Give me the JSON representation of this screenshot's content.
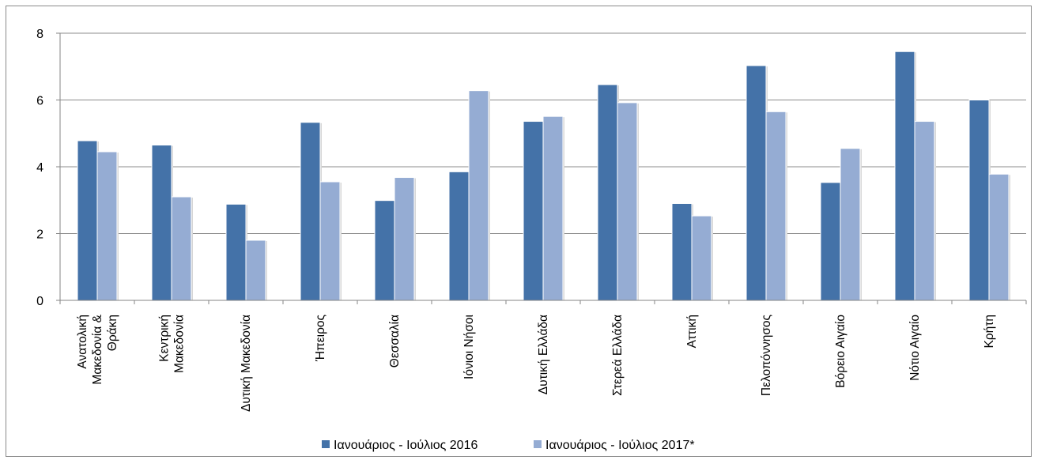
{
  "chart_data": {
    "type": "bar",
    "categories": [
      [
        "Ανατολική",
        "Μακεδονία &",
        "Θράκη"
      ],
      [
        "Κεντρική",
        "Μακεδονία"
      ],
      [
        "Δυτική Μακεδονία"
      ],
      [
        "Ήπειρος"
      ],
      [
        "Θεσσαλία"
      ],
      [
        "Ιόνιοι Νήσοι"
      ],
      [
        "Δυτική Ελλάδα"
      ],
      [
        "Στερεά Ελλάδα"
      ],
      [
        "Αττική"
      ],
      [
        "Πελοπόννησος"
      ],
      [
        "Βόρειο Αιγαίο"
      ],
      [
        "Νότιο Αιγαίο"
      ],
      [
        "Κρήτη"
      ]
    ],
    "series": [
      {
        "name": "Ιανουάριος - Ιούλιος 2016",
        "color": "#4472a8",
        "values": [
          4.78,
          4.65,
          2.88,
          5.33,
          2.99,
          3.85,
          5.36,
          6.46,
          2.9,
          7.03,
          3.53,
          7.45,
          6.0
        ]
      },
      {
        "name": "Ιανουάριος - Ιούλιος 2017*",
        "color": "#95acd3",
        "values": [
          4.45,
          3.1,
          1.8,
          3.55,
          3.68,
          6.28,
          5.51,
          5.92,
          2.53,
          5.65,
          4.55,
          5.36,
          3.78
        ]
      }
    ],
    "yticks": [
      "0",
      "2",
      "4",
      "6",
      "8"
    ],
    "ylim": [
      0,
      8
    ],
    "grid": true,
    "legend_position": "bottom",
    "gridline_color": "#8c8c8c",
    "axis_color": "#868686"
  }
}
